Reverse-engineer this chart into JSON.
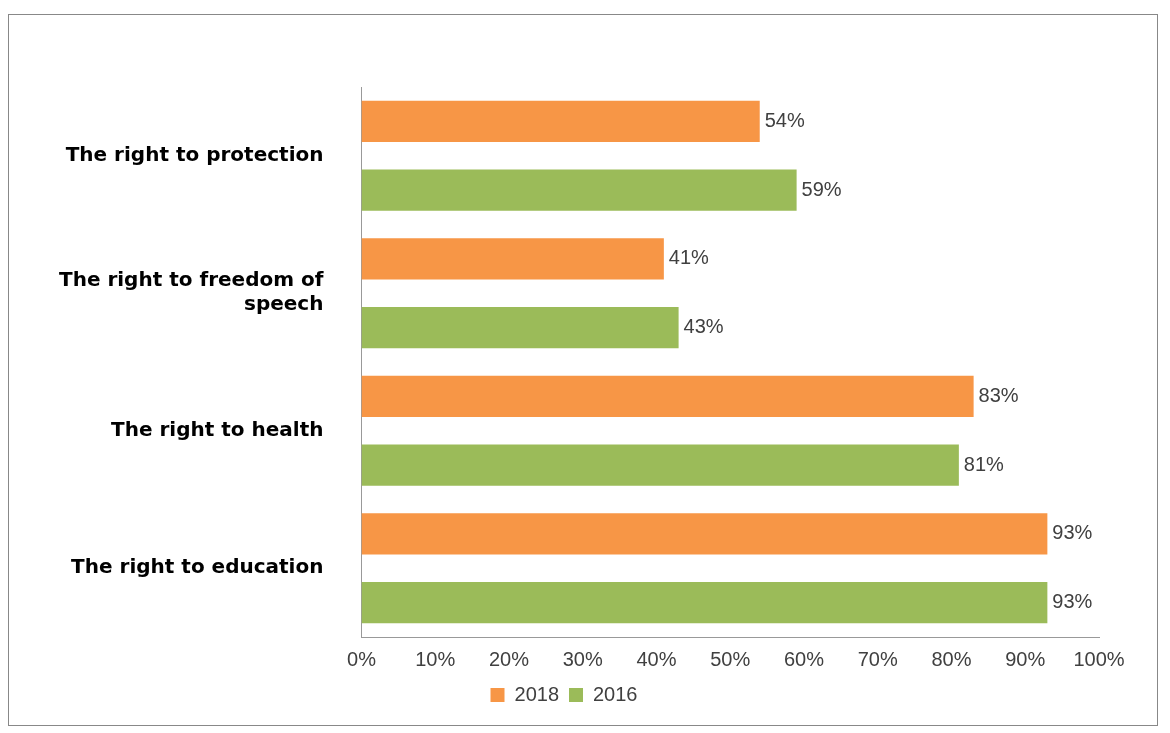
{
  "chart_data": {
    "type": "bar",
    "orientation": "horizontal",
    "categories": [
      "The right to protection",
      "The right to freedom of speech",
      "The right to health",
      "The right to education"
    ],
    "series": [
      {
        "name": "2018",
        "color": "#f79646",
        "values": [
          54,
          41,
          83,
          93
        ],
        "value_labels": [
          "54%",
          "41%",
          "83%",
          "93%"
        ]
      },
      {
        "name": "2016",
        "color": "#9bbb59",
        "values": [
          59,
          43,
          81,
          93
        ],
        "value_labels": [
          "59%",
          "43%",
          "81%",
          "93%"
        ]
      }
    ],
    "xlim": [
      0,
      100
    ],
    "xticks": [
      {
        "value": 0,
        "label": "0%"
      },
      {
        "value": 10,
        "label": "10%"
      },
      {
        "value": 20,
        "label": "20%"
      },
      {
        "value": 30,
        "label": "30%"
      },
      {
        "value": 40,
        "label": "40%"
      },
      {
        "value": 50,
        "label": "50%"
      },
      {
        "value": 60,
        "label": "60%"
      },
      {
        "value": 70,
        "label": "70%"
      },
      {
        "value": 80,
        "label": "80%"
      },
      {
        "value": 90,
        "label": "90%"
      },
      {
        "value": 100,
        "label": "100%"
      }
    ],
    "legend": "bottom",
    "grid": false
  }
}
